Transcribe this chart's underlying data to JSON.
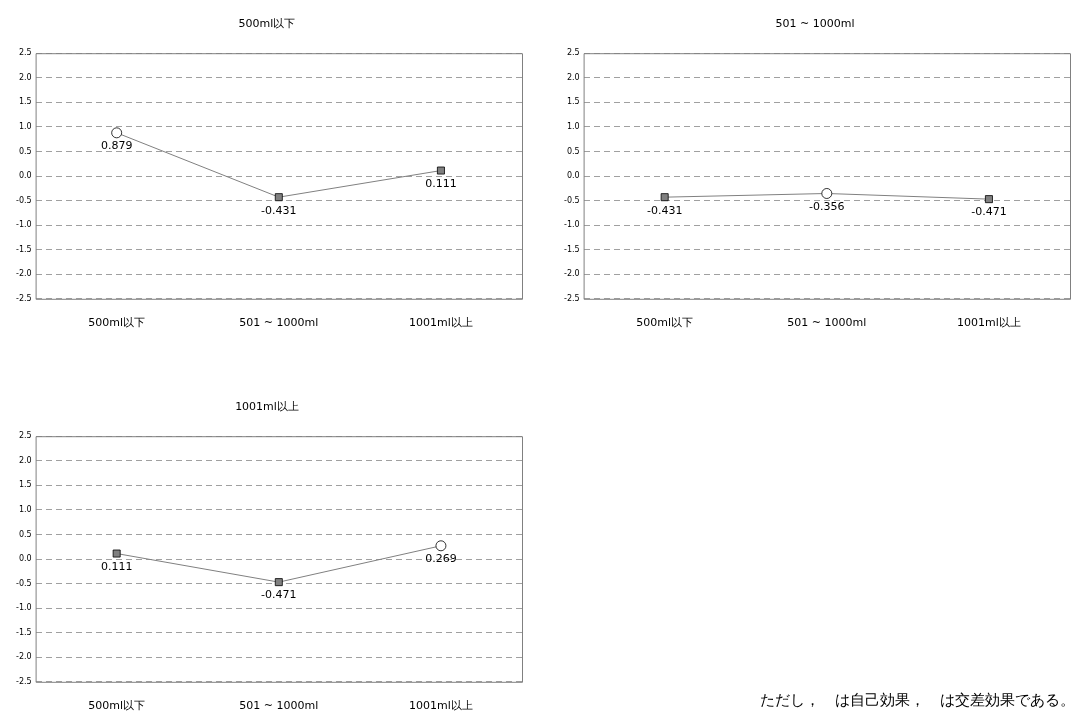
{
  "chart_data": [
    {
      "type": "line",
      "title": "500ml以下",
      "categories": [
        "500ml以下",
        "501 ~ 1000ml",
        "1001ml以上"
      ],
      "ylim": [
        -2.5,
        2.5
      ],
      "yticks": [
        {
          "value": -2.5,
          "label": "-2.5"
        },
        {
          "value": -2,
          "label": "-2.0"
        },
        {
          "value": -1.5,
          "label": "-1.5"
        },
        {
          "value": -1,
          "label": "-1.0"
        },
        {
          "value": -0.5,
          "label": "-0.5"
        },
        {
          "value": 0,
          "label": "0.0"
        },
        {
          "value": 0.5,
          "label": "0.5"
        },
        {
          "value": 1,
          "label": "1.0"
        },
        {
          "value": 1.5,
          "label": "1.5"
        },
        {
          "value": 2,
          "label": "2.0"
        },
        {
          "value": 2.5,
          "label": "2.5"
        }
      ],
      "grid": "y",
      "legend": false,
      "series": [
        {
          "type": "line",
          "color": "#808080",
          "marker": "none",
          "data_labels": true,
          "values": [
            0.879,
            -0.431,
            0.111
          ]
        },
        {
          "type": "scatter",
          "color": "#808080",
          "marker": "square",
          "values": [
            null,
            -0.431,
            0.111
          ]
        },
        {
          "type": "scatter",
          "color": "#ffffff",
          "marker": "circle",
          "values": [
            0.879,
            null,
            null
          ]
        }
      ]
    },
    {
      "type": "line",
      "title": "501 ~ 1000ml",
      "categories": [
        "500ml以下",
        "501 ~ 1000ml",
        "1001ml以上"
      ],
      "ylim": [
        -2.5,
        2.5
      ],
      "yticks": [
        {
          "value": -2.5,
          "label": "-2.5"
        },
        {
          "value": -2,
          "label": "-2.0"
        },
        {
          "value": -1.5,
          "label": "-1.5"
        },
        {
          "value": -1,
          "label": "-1.0"
        },
        {
          "value": -0.5,
          "label": "-0.5"
        },
        {
          "value": 0,
          "label": "0.0"
        },
        {
          "value": 0.5,
          "label": "0.5"
        },
        {
          "value": 1,
          "label": "1.0"
        },
        {
          "value": 1.5,
          "label": "1.5"
        },
        {
          "value": 2,
          "label": "2.0"
        },
        {
          "value": 2.5,
          "label": "2.5"
        }
      ],
      "grid": "y",
      "legend": false,
      "series": [
        {
          "type": "line",
          "color": "#808080",
          "marker": "none",
          "data_labels": true,
          "values": [
            -0.431,
            -0.356,
            -0.471
          ]
        },
        {
          "type": "scatter",
          "color": "#808080",
          "marker": "square",
          "values": [
            -0.431,
            null,
            -0.471
          ]
        },
        {
          "type": "scatter",
          "color": "#ffffff",
          "marker": "circle",
          "values": [
            null,
            -0.356,
            null
          ]
        }
      ]
    },
    {
      "type": "line",
      "title": "1001ml以上",
      "categories": [
        "500ml以下",
        "501 ~ 1000ml",
        "1001ml以上"
      ],
      "ylim": [
        -2.5,
        2.5
      ],
      "yticks": [
        {
          "value": -2.5,
          "label": "-2.5"
        },
        {
          "value": -2,
          "label": "-2.0"
        },
        {
          "value": -1.5,
          "label": "-1.5"
        },
        {
          "value": -1,
          "label": "-1.0"
        },
        {
          "value": -0.5,
          "label": "-0.5"
        },
        {
          "value": 0,
          "label": "0.0"
        },
        {
          "value": 0.5,
          "label": "0.5"
        },
        {
          "value": 1,
          "label": "1.0"
        },
        {
          "value": 1.5,
          "label": "1.5"
        },
        {
          "value": 2,
          "label": "2.0"
        },
        {
          "value": 2.5,
          "label": "2.5"
        }
      ],
      "grid": "y",
      "legend": false,
      "series": [
        {
          "type": "line",
          "color": "#808080",
          "marker": "none",
          "data_labels": true,
          "values": [
            0.111,
            -0.471,
            0.269
          ]
        },
        {
          "type": "scatter",
          "color": "#808080",
          "marker": "square",
          "values": [
            0.111,
            -0.471,
            null
          ]
        },
        {
          "type": "scatter",
          "color": "#ffffff",
          "marker": "circle",
          "values": [
            null,
            null,
            0.269
          ]
        }
      ],
      "annotations": [
        "ただし，　は自己効果，　は交差効果である。"
      ]
    }
  ]
}
